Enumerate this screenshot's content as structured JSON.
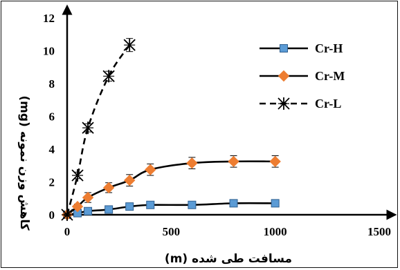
{
  "chart_data": {
    "type": "line",
    "xlabel": "مسافت طی شده  (m)",
    "ylabel": "کاهش وزن نمونه  (mg)",
    "xlim": [
      0,
      1500
    ],
    "ylim": [
      0,
      12
    ],
    "xticks": [
      0,
      500,
      1000,
      1500
    ],
    "yticks": [
      0,
      2,
      4,
      6,
      8,
      10,
      12
    ],
    "xtick_labels": [
      "0",
      "500",
      "1000",
      "1500"
    ],
    "ytick_labels": [
      "0",
      "2",
      "4",
      "6",
      "8",
      "10",
      "12"
    ],
    "grid": false,
    "legend_position": "top-right",
    "series": [
      {
        "name": "Cr-H",
        "marker": "square",
        "line_style": "solid",
        "color": "#5b9bd5",
        "x": [
          0,
          50,
          100,
          200,
          300,
          400,
          600,
          800,
          1000
        ],
        "y": [
          0,
          0.1,
          0.22,
          0.32,
          0.5,
          0.6,
          0.6,
          0.7,
          0.7
        ],
        "error": [
          0.05,
          0.05,
          0.08,
          0.08,
          0.1,
          0.1,
          0.1,
          0.1,
          0.1
        ]
      },
      {
        "name": "Cr-M",
        "marker": "diamond",
        "line_style": "solid",
        "color": "#ed7d31",
        "x": [
          0,
          50,
          100,
          200,
          300,
          400,
          600,
          800,
          1000
        ],
        "y": [
          0,
          0.5,
          1.05,
          1.65,
          2.1,
          2.75,
          3.15,
          3.25,
          3.25
        ],
        "error": [
          0.05,
          0.15,
          0.3,
          0.3,
          0.35,
          0.35,
          0.35,
          0.35,
          0.35
        ]
      },
      {
        "name": "Cr-L",
        "marker": "asterisk",
        "line_style": "dashed",
        "color": "#000000",
        "x": [
          0,
          50,
          100,
          200,
          300
        ],
        "y": [
          0,
          2.4,
          5.3,
          8.45,
          10.35
        ],
        "error": [
          0.05,
          0.2,
          0.25,
          0.3,
          0.4
        ]
      }
    ]
  }
}
